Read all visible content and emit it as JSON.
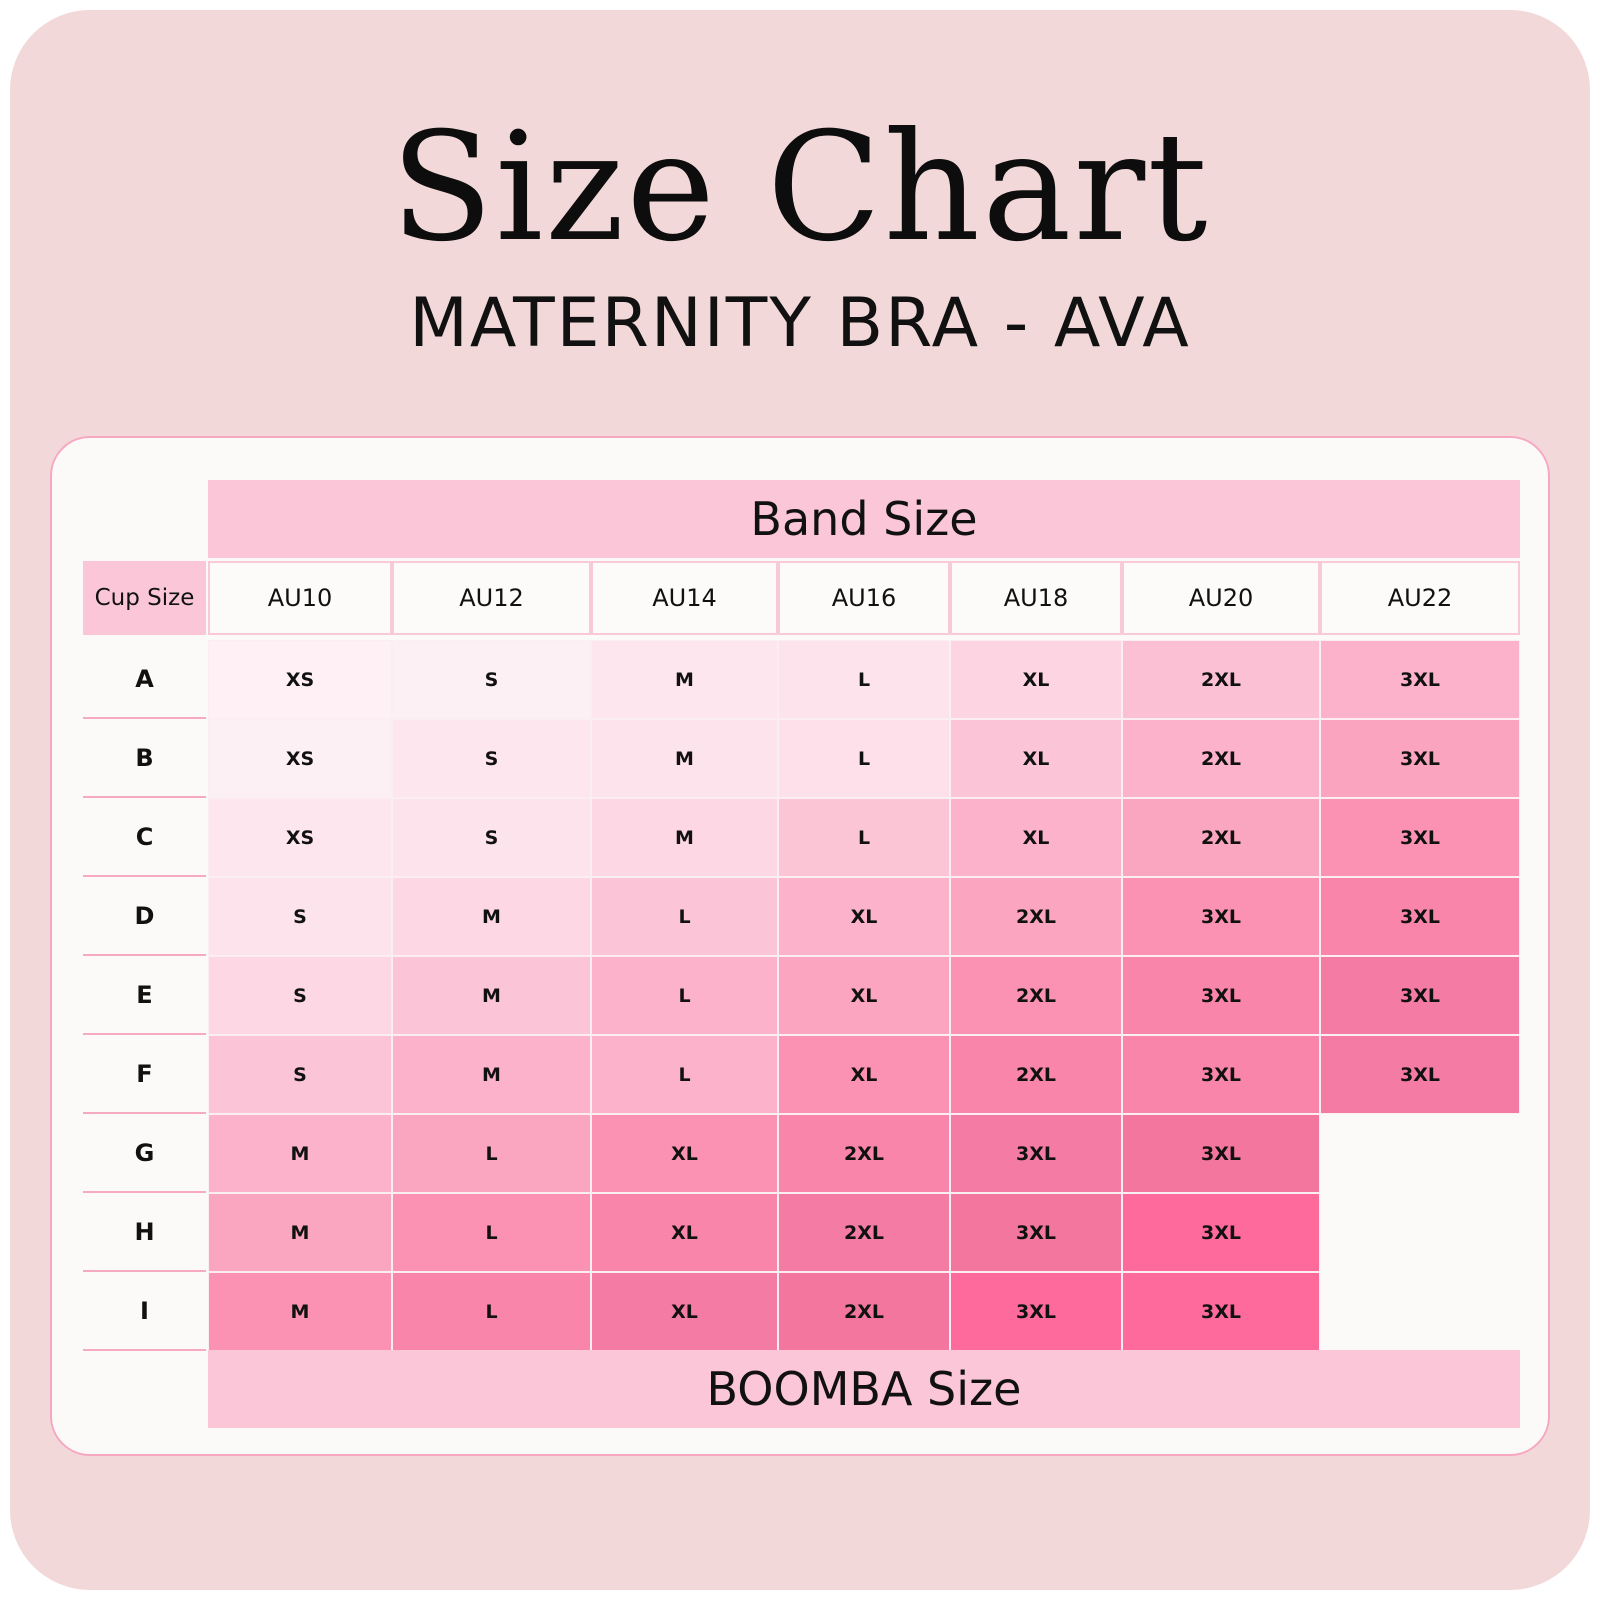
{
  "title": "Size Chart",
  "subtitle": "MATERNITY BRA - AVA",
  "table": {
    "band_header": "Band Size",
    "cup_header": "Cup Size",
    "footer": "BOOMBA Size",
    "band_sizes": [
      "AU10",
      "AU12",
      "AU14",
      "AU16",
      "AU18",
      "AU20",
      "AU22"
    ],
    "cup_sizes": [
      "A",
      "B",
      "C",
      "D",
      "E",
      "F",
      "G",
      "H",
      "I"
    ],
    "rows": [
      [
        "XS",
        "S",
        "M",
        "L",
        "XL",
        "2XL",
        "3XL"
      ],
      [
        "XS",
        "S",
        "M",
        "L",
        "XL",
        "2XL",
        "3XL"
      ],
      [
        "XS",
        "S",
        "M",
        "L",
        "XL",
        "2XL",
        "3XL"
      ],
      [
        "S",
        "M",
        "L",
        "XL",
        "2XL",
        "3XL",
        "3XL"
      ],
      [
        "S",
        "M",
        "L",
        "XL",
        "2XL",
        "3XL",
        "3XL"
      ],
      [
        "S",
        "M",
        "L",
        "XL",
        "2XL",
        "3XL",
        "3XL"
      ],
      [
        "M",
        "L",
        "XL",
        "2XL",
        "3XL",
        "3XL",
        ""
      ],
      [
        "M",
        "L",
        "XL",
        "2XL",
        "3XL",
        "3XL",
        ""
      ],
      [
        "M",
        "L",
        "XL",
        "2XL",
        "3XL",
        "3XL",
        ""
      ]
    ],
    "cell_colors": [
      [
        "#fef0f4",
        "#fdf0f4",
        "#fde6ee",
        "#fde3ec",
        "#fdd5e2",
        "#fcc0d4",
        "#fbb2ca"
      ],
      [
        "#fdf0f4",
        "#fde6ee",
        "#fde3ec",
        "#fde0ea",
        "#fbc5d7",
        "#fbb2ca",
        "#fba4c0"
      ],
      [
        "#fde6ee",
        "#fde3ec",
        "#fdd7e3",
        "#fcc5d6",
        "#fbb2ca",
        "#fba6c1",
        "#fb92b4"
      ],
      [
        "#fde3ec",
        "#fdd7e3",
        "#fbc5d7",
        "#fbb2ca",
        "#fba5c0",
        "#fb92b4",
        "#f986aa"
      ],
      [
        "#fdd7e3",
        "#fbc5d7",
        "#fbb2ca",
        "#fba5c0",
        "#fb92b4",
        "#f986aa",
        "#f47ba3"
      ],
      [
        "#fbc5d7",
        "#fbb2ca",
        "#fbb2ca",
        "#fb92b4",
        "#f986aa",
        "#f986aa",
        "#f47ba3"
      ],
      [
        "#fbb2ca",
        "#fba6c1",
        "#fb92b4",
        "#f986aa",
        "#f47ba3",
        "#f3769f",
        "#fbfaf8"
      ],
      [
        "#fba6c1",
        "#fb92b4",
        "#f986aa",
        "#f47ba3",
        "#f3769f",
        "#fe6a9b",
        "#fbfaf8"
      ],
      [
        "#fb92b4",
        "#f986aa",
        "#f47ba3",
        "#f3769f",
        "#fe6a9b",
        "#fe6a9b",
        "#fbfaf8"
      ]
    ]
  }
}
